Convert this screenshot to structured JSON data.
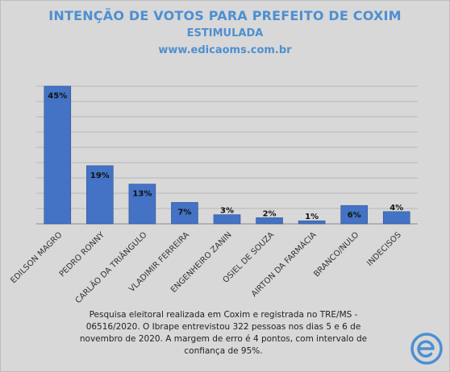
{
  "header": {
    "title": "INTENÇÃO DE VOTOS PARA PREFEITO DE COXIM",
    "subtitle": "ESTIMULADA",
    "website": "www.edicaoms.com.br"
  },
  "footnote": "Pesquisa eleitoral realizada em Coxim e registrada no TRE/MS - 06516/2020. O Ibrape entrevistou 322 pessoas nos dias 5 e 6 de novembro de 2020. A margem de erro é 4 pontos, com intervalo de confiança de 95%.",
  "logo": {
    "icon": "edicaoms-e-logo-icon",
    "color": "#4e8fd1"
  },
  "colors": {
    "bar": "#4472c4",
    "title": "#4e8fd1",
    "background": "#d8d8d8"
  },
  "chart_data": {
    "type": "bar",
    "title": "INTENÇÃO DE VOTOS PARA PREFEITO DE COXIM",
    "subtitle": "ESTIMULADA",
    "categories": [
      "EDILSON MAGRO",
      "PEDRO RONNY",
      "CARLÃO DA TRIÂNGULO",
      "VLADIMIR FERREIRA",
      "ENGENHEIRO ZANIN",
      "OSIEL DE SOUZA",
      "AIRTON DA FARMÁCIA",
      "BRANCO/NULO",
      "INDECISOS"
    ],
    "values": [
      45,
      19,
      13,
      7,
      3,
      2,
      1,
      6,
      4
    ],
    "data_labels": [
      "45%",
      "19%",
      "13%",
      "7%",
      "3%",
      "2%",
      "1%",
      "6%",
      "4%"
    ],
    "ylim": [
      0,
      45
    ],
    "grid": true,
    "legend": "none"
  }
}
